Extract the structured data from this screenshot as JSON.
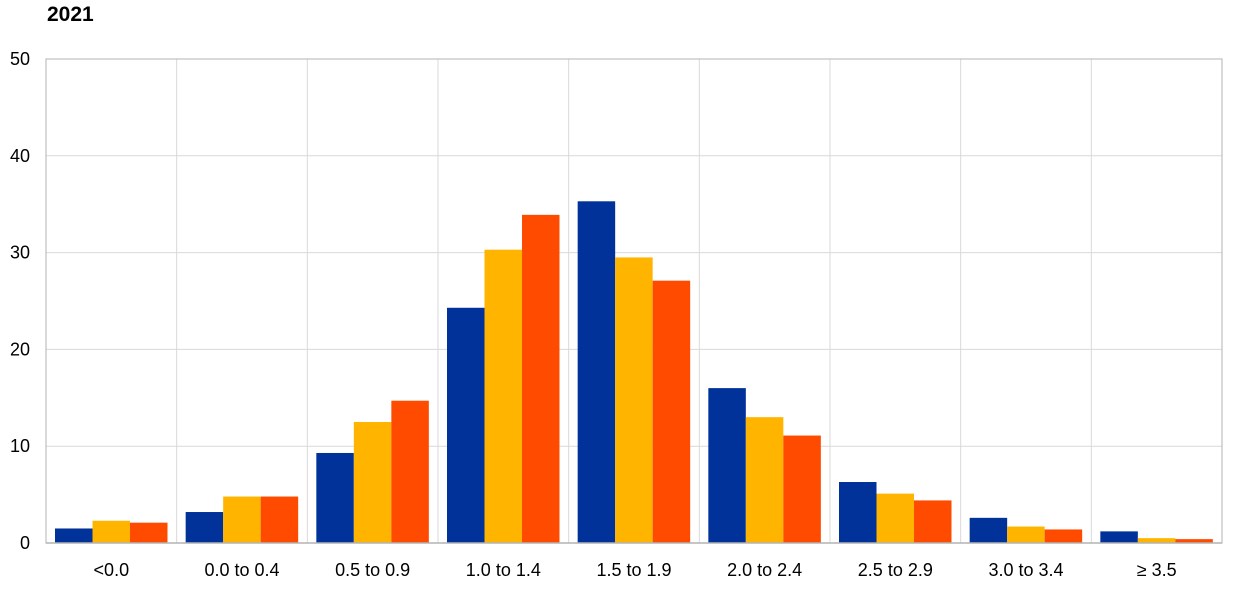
{
  "chart_data": {
    "type": "bar",
    "title": "2021",
    "xlabel": "",
    "ylabel": "",
    "categories": [
      "<0.0",
      "0.0 to 0.4",
      "0.5 to 0.9",
      "1.0 to 1.4",
      "1.5 to 1.9",
      "2.0 to 2.4",
      "2.5 to 2.9",
      "3.0 to 3.4",
      "≥ 3.5"
    ],
    "series": [
      {
        "color": "#003299",
        "values": [
          1.5,
          3.2,
          9.3,
          24.3,
          35.3,
          16.0,
          6.3,
          2.6,
          1.2
        ]
      },
      {
        "color": "#FFB400",
        "values": [
          2.3,
          4.8,
          12.5,
          30.3,
          29.5,
          13.0,
          5.1,
          1.7,
          0.5
        ]
      },
      {
        "color": "#FF4B00",
        "values": [
          2.1,
          4.8,
          14.7,
          33.9,
          27.1,
          11.1,
          4.4,
          1.4,
          0.4
        ]
      }
    ],
    "ylim": [
      0,
      50
    ],
    "yticks": [
      0,
      10,
      20,
      30,
      40,
      50
    ],
    "grid": true,
    "grid_color": "#d9d9d9",
    "axis_color": "#b3b3b3"
  }
}
